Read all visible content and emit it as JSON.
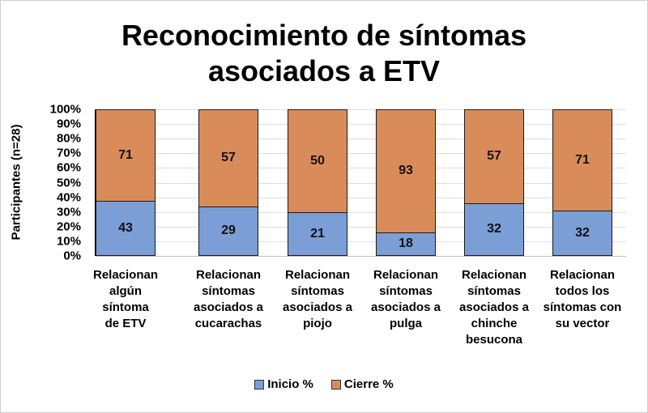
{
  "chart_data": {
    "type": "bar",
    "stacked": true,
    "normalized": "100%",
    "title": "Reconocimiento de síntomas asociados a ETV",
    "title_lines": [
      "Reconocimiento de síntomas",
      "asociados a ETV"
    ],
    "xlabel": "",
    "ylabel": "Participantes (n=28)",
    "ylim": [
      0,
      100
    ],
    "yticks": [
      "0%",
      "10%",
      "20%",
      "30%",
      "40%",
      "50%",
      "60%",
      "70%",
      "80%",
      "90%",
      "100%"
    ],
    "grid": true,
    "legend_position": "bottom",
    "categories": [
      "Relacionan algún síntoma de ETV",
      "Relacionan síntomas asociados a cucarachas",
      "Relacionan síntomas asociados a piojo",
      "Relacionan síntomas asociados a pulga",
      "Relacionan síntomas asociados a chinche besucona",
      "Relacionan todos los síntomas con su vector"
    ],
    "category_lines": [
      [
        "Relacionan",
        "algún",
        "síntoma",
        "de ETV"
      ],
      [
        "Relacionan",
        "síntomas",
        "asociados a",
        "cucarachas"
      ],
      [
        "Relacionan",
        "síntomas",
        "asociados a",
        "piojo"
      ],
      [
        "Relacionan",
        "síntomas",
        "asociados a",
        "pulga"
      ],
      [
        "Relacionan",
        "síntomas",
        "asociados a",
        "chinche",
        "besucona"
      ],
      [
        "Relacionan",
        "todos los",
        "síntomas con",
        "su vector"
      ]
    ],
    "series": [
      {
        "name": "Inicio %",
        "color": "#7b9ed6",
        "values": [
          43,
          29,
          21,
          18,
          32,
          32
        ]
      },
      {
        "name": "Cierre %",
        "color": "#d98c5a",
        "values": [
          71,
          57,
          50,
          93,
          57,
          71
        ]
      }
    ]
  }
}
